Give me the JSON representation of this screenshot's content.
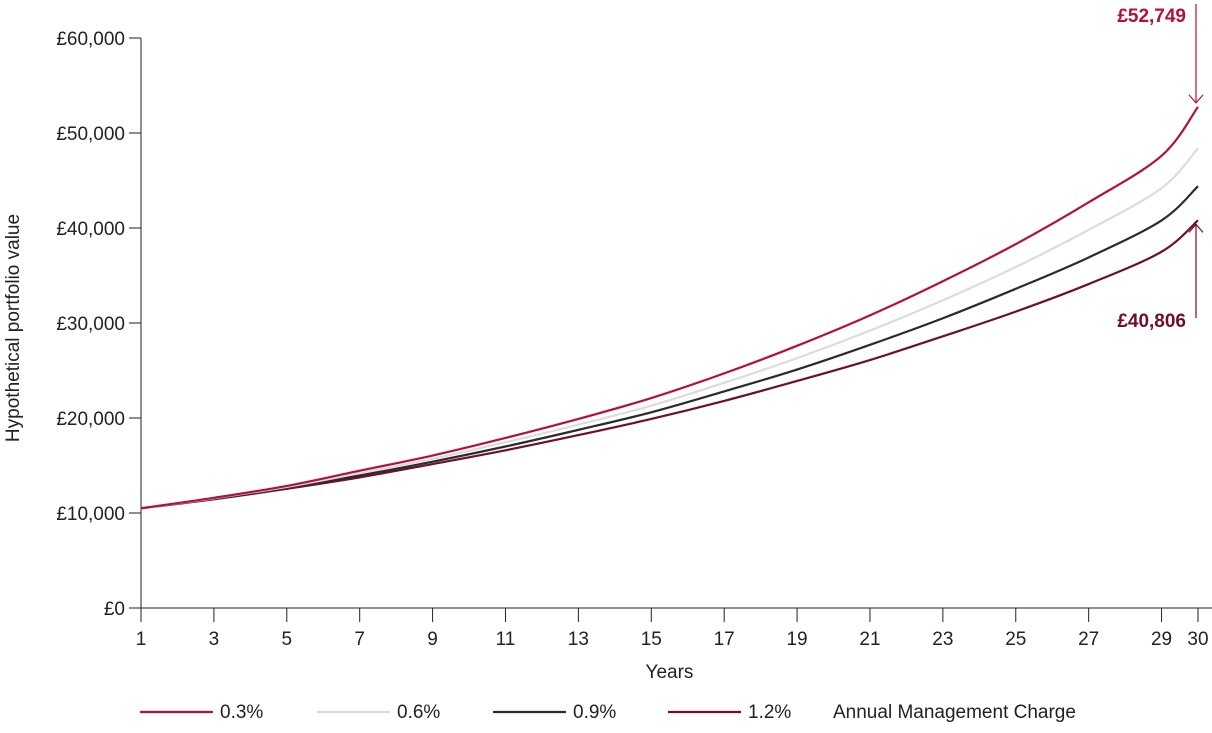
{
  "chart_data": {
    "type": "line",
    "xlabel": "Years",
    "ylabel": "Hypothetical portfolio value",
    "xlim": [
      1,
      30
    ],
    "ylim": [
      0,
      60000
    ],
    "x_ticks": [
      1,
      3,
      5,
      7,
      9,
      11,
      13,
      15,
      17,
      19,
      21,
      23,
      25,
      27,
      29,
      30
    ],
    "y_ticks": [
      {
        "value": 0,
        "label": "£0"
      },
      {
        "value": 10000,
        "label": "£10,000"
      },
      {
        "value": 20000,
        "label": "£20,000"
      },
      {
        "value": 30000,
        "label": "£30,000"
      },
      {
        "value": 40000,
        "label": "£40,000"
      },
      {
        "value": 50000,
        "label": "£50,000"
      },
      {
        "value": 60000,
        "label": "£60,000"
      }
    ],
    "x": [
      1,
      3,
      5,
      7,
      9,
      11,
      13,
      15,
      17,
      19,
      21,
      23,
      25,
      27,
      29,
      30
    ],
    "series": [
      {
        "name": "0.3%",
        "color": "#b5103a",
        "values": [
          10500,
          11600,
          12850,
          14450,
          16050,
          17900,
          19900,
          22100,
          24700,
          27600,
          30800,
          34400,
          38300,
          42700,
          47600,
          52749
        ]
      },
      {
        "name": "0.6%",
        "color": "#dcdcdc",
        "values": [
          10500,
          11550,
          12750,
          14200,
          15700,
          17450,
          19300,
          21300,
          23700,
          26300,
          29200,
          32400,
          35900,
          39800,
          44200,
          48400
        ]
      },
      {
        "name": "0.9%",
        "color": "#2b2b2b",
        "values": [
          10500,
          11500,
          12650,
          13950,
          15400,
          17000,
          18750,
          20600,
          22800,
          25100,
          27700,
          30500,
          33600,
          36900,
          40800,
          44400
        ]
      },
      {
        "name": "1.2%",
        "color": "#6e0f2d",
        "values": [
          10500,
          11450,
          12550,
          13750,
          15150,
          16600,
          18200,
          19900,
          21800,
          23900,
          26100,
          28600,
          31200,
          34100,
          37500,
          40806
        ]
      }
    ],
    "annotations": [
      {
        "label": "£52,749",
        "value": 52749,
        "color": "#b5103a"
      },
      {
        "label": "£40,806",
        "value": 40806,
        "color": "#6e0f2d"
      }
    ],
    "legend_suffix": "Annual Management Charge",
    "legend_position": "bottom",
    "grid": false
  }
}
